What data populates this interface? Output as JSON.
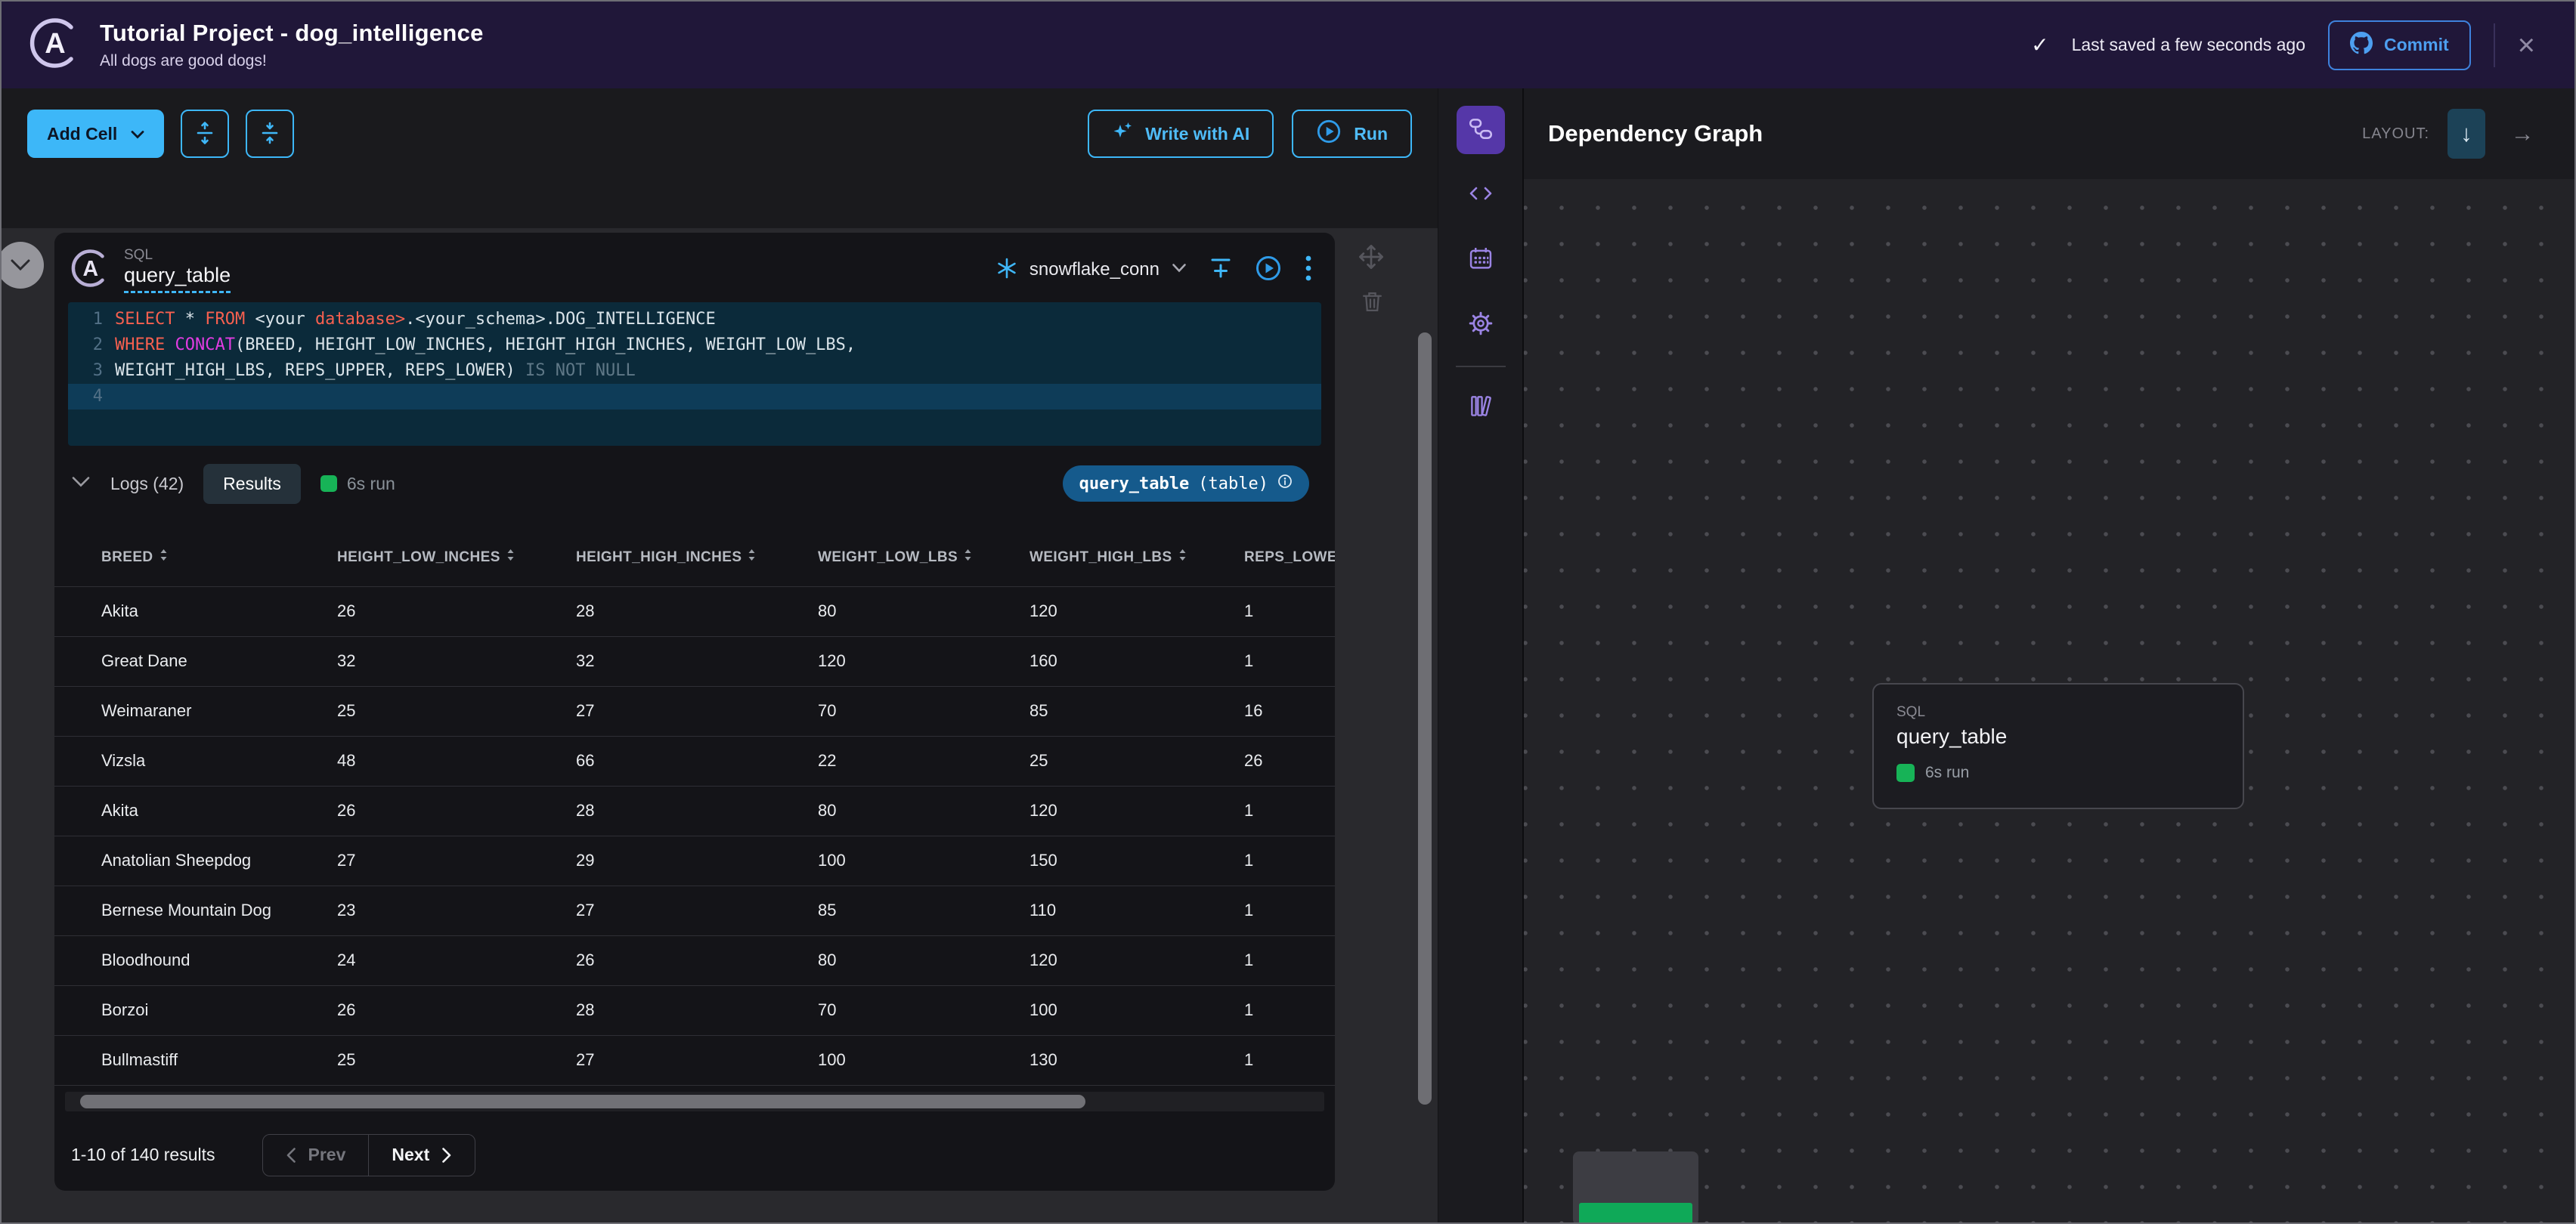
{
  "header": {
    "title": "Tutorial Project - dog_intelligence",
    "subtitle": "All dogs are good dogs!",
    "check_icon": "✓",
    "saved_status": "Last saved a few seconds ago",
    "commit_label": "Commit",
    "close_icon": "×",
    "bg_color": "#201739",
    "accent_color": "#4D9FF0"
  },
  "toolbar": {
    "add_cell_label": "Add Cell",
    "write_with_ai_label": "Write with AI",
    "run_label": "Run",
    "accent_color": "#3DB7F8",
    "icons": [
      "chevron-down-icon",
      "expand-cells-icon",
      "collapse-cells-icon",
      "sparkle-icon",
      "play-circle-icon"
    ]
  },
  "cell": {
    "type_label": "SQL",
    "name": "query_table",
    "connection": {
      "name": "snowflake_conn",
      "icon": "snowflake-icon"
    },
    "header_icons": [
      "filter-add-icon",
      "run-cell-icon",
      "kebab-menu-icon",
      "move-cell-icon",
      "trash-icon"
    ],
    "code": {
      "lines": [
        {
          "no": "1",
          "highlight": false,
          "tokens": [
            {
              "t": "SELECT",
              "c": "kw"
            },
            {
              "t": " ",
              "c": "p"
            },
            {
              "t": "*",
              "c": "p"
            },
            {
              "t": " ",
              "c": "p"
            },
            {
              "t": "FROM",
              "c": "kw"
            },
            {
              "t": " <your ",
              "c": "p"
            },
            {
              "t": "database>",
              "c": "kw"
            },
            {
              "t": ".<your_schema>.DOG_INTELLIGENCE",
              "c": "p"
            }
          ]
        },
        {
          "no": "2",
          "highlight": false,
          "tokens": [
            {
              "t": "WHERE",
              "c": "kw"
            },
            {
              "t": " ",
              "c": "p"
            },
            {
              "t": "CONCAT",
              "c": "fn"
            },
            {
              "t": "(BREED, HEIGHT_LOW_INCHES, HEIGHT_HIGH_INCHES, WEIGHT_LOW_LBS,",
              "c": "p"
            }
          ]
        },
        {
          "no": "3",
          "highlight": false,
          "tokens": [
            {
              "t": "WEIGHT_HIGH_LBS, REPS_UPPER, REPS_LOWER)",
              "c": "p"
            },
            {
              "t": " IS NOT NULL",
              "c": "mut"
            }
          ]
        },
        {
          "no": "4",
          "highlight": true,
          "tokens": []
        }
      ]
    },
    "results_bar": {
      "logs_label": "Logs (42)",
      "results_label": "Results",
      "run_badge": "6s run",
      "run_color": "#17B357"
    },
    "output_badge": {
      "name": "query_table",
      "kind": "(table)",
      "bg_color": "#155A8C"
    },
    "table": {
      "columns": [
        "BREED",
        "HEIGHT_LOW_INCHES",
        "HEIGHT_HIGH_INCHES",
        "WEIGHT_LOW_LBS",
        "WEIGHT_HIGH_LBS",
        "REPS_LOWER"
      ],
      "rows": [
        [
          "Akita",
          "26",
          "28",
          "80",
          "120",
          "1"
        ],
        [
          "Great Dane",
          "32",
          "32",
          "120",
          "160",
          "1"
        ],
        [
          "Weimaraner",
          "25",
          "27",
          "70",
          "85",
          "16"
        ],
        [
          "Vizsla",
          "48",
          "66",
          "22",
          "25",
          "26"
        ],
        [
          "Akita",
          "26",
          "28",
          "80",
          "120",
          "1"
        ],
        [
          "Anatolian Sheepdog",
          "27",
          "29",
          "100",
          "150",
          "1"
        ],
        [
          "Bernese Mountain Dog",
          "23",
          "27",
          "85",
          "110",
          "1"
        ],
        [
          "Bloodhound",
          "24",
          "26",
          "80",
          "120",
          "1"
        ],
        [
          "Borzoi",
          "26",
          "28",
          "70",
          "100",
          "1"
        ],
        [
          "Bullmastiff",
          "25",
          "27",
          "100",
          "130",
          "1"
        ]
      ]
    },
    "pagination": {
      "summary": "1-10 of 140 results",
      "prev_label": "Prev",
      "next_label": "Next"
    }
  },
  "rail": {
    "items": [
      {
        "icon": "dependency-graph-icon",
        "active": true
      },
      {
        "icon": "code-icon",
        "active": false
      },
      {
        "icon": "schedule-calendar-icon",
        "active": false
      },
      {
        "icon": "settings-gear-icon",
        "active": false
      },
      {
        "icon": "library-books-icon",
        "active": false
      }
    ],
    "active_color": "#5537A8",
    "icon_color": "#9B84E4"
  },
  "graph": {
    "title": "Dependency Graph",
    "layout_label": "LAYOUT:",
    "layout_options": [
      {
        "icon": "layout-vertical-icon",
        "glyph": "↓",
        "active": true
      },
      {
        "icon": "layout-horizontal-icon",
        "glyph": "→",
        "active": false
      }
    ],
    "node": {
      "type_label": "SQL",
      "name": "query_table",
      "run_badge": "6s run",
      "run_color": "#17B357"
    }
  }
}
